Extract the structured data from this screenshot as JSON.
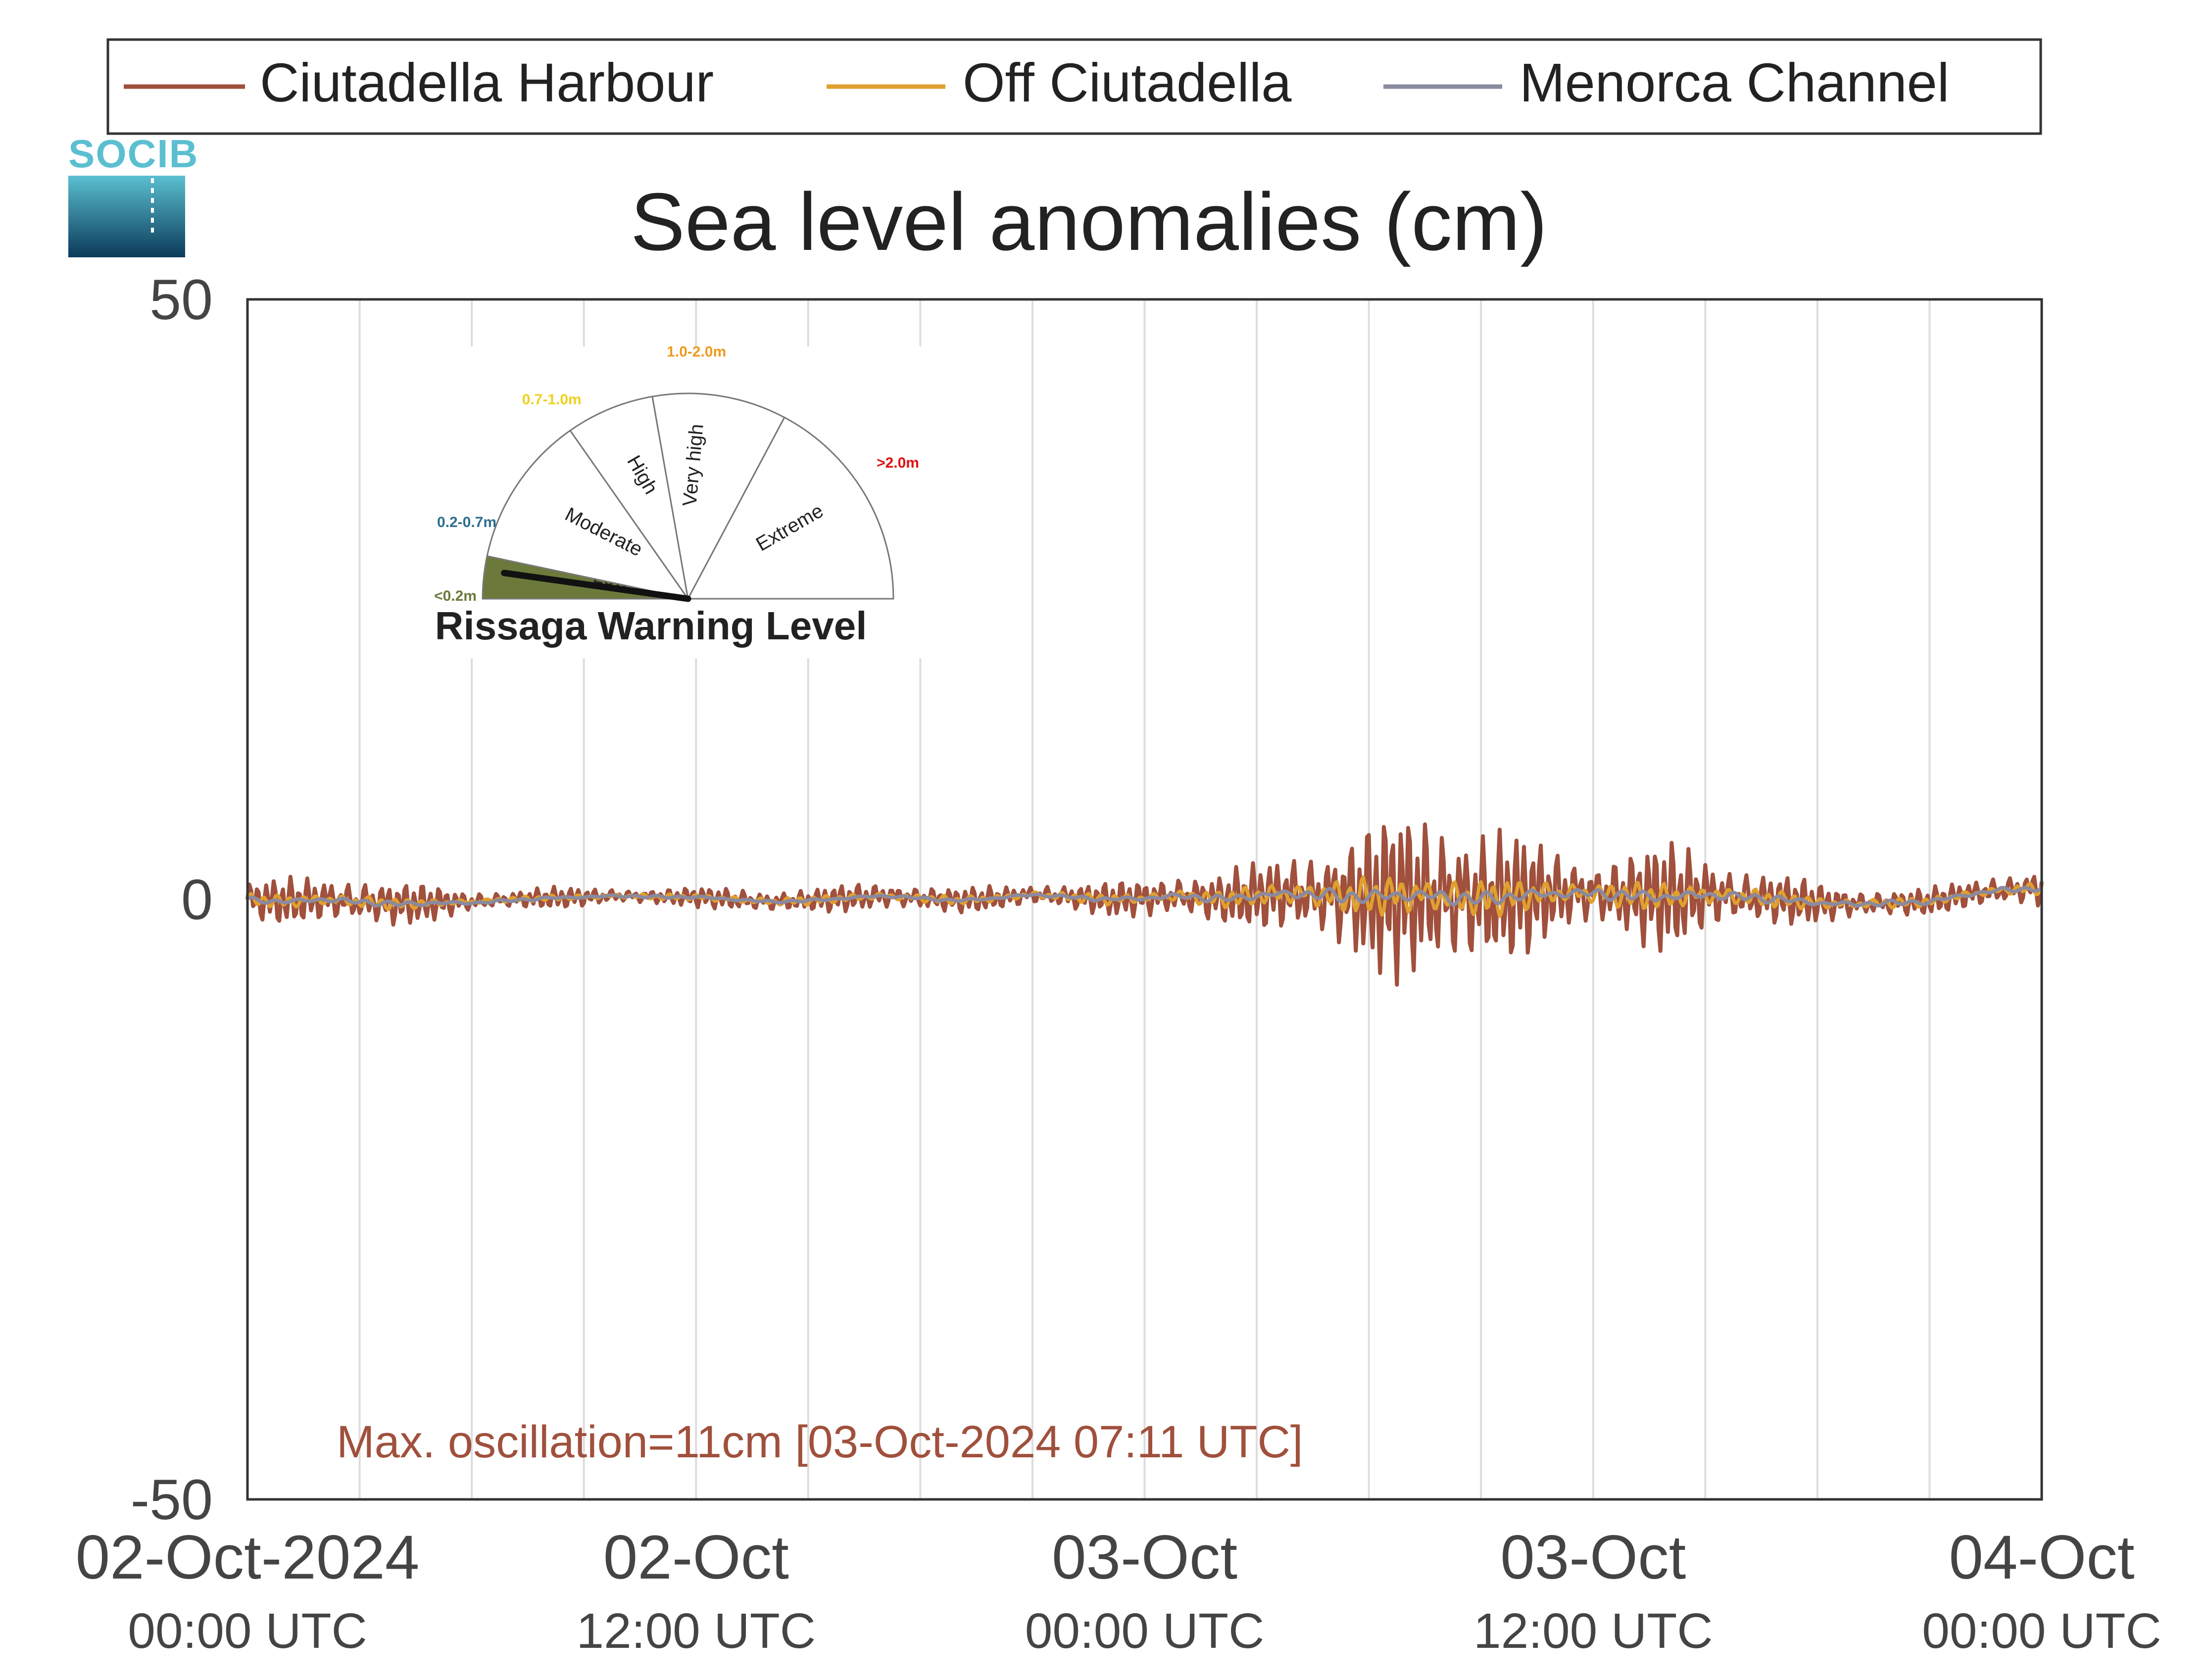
{
  "chart_data": {
    "type": "line",
    "title": "Sea level anomalies (cm)",
    "xlabel": "",
    "ylabel": "",
    "ylim": [
      -50,
      50
    ],
    "yticks": [
      -50,
      0,
      50
    ],
    "xlim_hours": [
      0,
      48
    ],
    "xticks": [
      {
        "hours": 0,
        "line1": "02-Oct-2024",
        "line2": "00:00 UTC"
      },
      {
        "hours": 12,
        "line1": "02-Oct",
        "line2": "12:00 UTC"
      },
      {
        "hours": 24,
        "line1": "03-Oct",
        "line2": "00:00 UTC"
      },
      {
        "hours": 36,
        "line1": "03-Oct",
        "line2": "12:00 UTC"
      },
      {
        "hours": 48,
        "line1": "04-Oct",
        "line2": "00:00 UTC"
      }
    ],
    "grid": "vertical lines every 3 hours",
    "legend_position": "top",
    "series": [
      {
        "name": "Ciutadella Harbour",
        "color": "#a0503c",
        "x_hours": [
          0,
          1,
          2,
          3,
          4,
          5,
          6,
          7,
          8,
          9,
          10,
          11,
          12,
          13,
          14,
          15,
          16,
          17,
          18,
          19,
          20,
          21,
          22,
          23,
          24,
          25,
          26,
          27,
          28,
          29,
          30,
          31,
          32,
          33,
          34,
          35,
          36,
          37,
          38,
          39,
          40,
          41,
          42,
          43,
          44,
          45,
          46,
          47,
          48
        ],
        "oscillation_amplitude_cm": [
          1.4,
          1.7,
          1.8,
          1.9,
          1.6,
          1.3,
          0.8,
          0.7,
          0.8,
          0.7,
          0.6,
          0.6,
          0.7,
          0.9,
          0.9,
          0.8,
          1.0,
          1.1,
          1.0,
          0.9,
          0.9,
          0.9,
          1.0,
          1.2,
          1.5,
          1.8,
          2.0,
          2.4,
          3.2,
          4.3,
          5.5,
          6.5,
          6.6,
          6.0,
          4.6,
          3.3,
          2.8,
          3.6,
          4.1,
          3.3,
          2.3,
          1.9,
          1.5,
          1.2,
          1.1,
          1.0,
          1.0,
          1.3,
          1.6
        ],
        "mean_cm": [
          0.0,
          -0.2,
          0.0,
          -0.2,
          -0.4,
          -0.3,
          -0.2,
          0.0,
          0.1,
          0.2,
          0.3,
          0.2,
          0.2,
          0.0,
          -0.2,
          -0.1,
          0.1,
          0.3,
          0.1,
          -0.1,
          0.1,
          0.4,
          0.2,
          0.0,
          0.1,
          0.3,
          0.0,
          0.3,
          0.5,
          0.3,
          0.2,
          0.4,
          0.2,
          0.0,
          0.3,
          0.5,
          0.5,
          0.3,
          0.2,
          0.4,
          0.2,
          0.0,
          -0.3,
          -0.4,
          -0.3,
          -0.2,
          0.4,
          0.8,
          0.9
        ]
      },
      {
        "name": "Off Ciutadella",
        "color": "#e0a030",
        "x_hours": [
          0,
          1,
          2,
          3,
          4,
          5,
          6,
          7,
          8,
          9,
          10,
          11,
          12,
          13,
          14,
          15,
          16,
          17,
          18,
          19,
          20,
          21,
          22,
          23,
          24,
          25,
          26,
          27,
          28,
          29,
          30,
          31,
          32,
          33,
          34,
          35,
          36,
          37,
          38,
          39,
          40,
          41,
          42,
          43,
          44,
          45,
          46,
          47,
          48
        ],
        "oscillation_amplitude_cm": [
          0.4,
          0.5,
          0.5,
          0.5,
          0.4,
          0.3,
          0.2,
          0.2,
          0.2,
          0.2,
          0.2,
          0.2,
          0.2,
          0.3,
          0.3,
          0.3,
          0.3,
          0.3,
          0.3,
          0.3,
          0.3,
          0.3,
          0.3,
          0.4,
          0.4,
          0.5,
          0.6,
          0.8,
          1.0,
          1.2,
          1.4,
          1.6,
          1.6,
          1.4,
          1.2,
          1.0,
          0.9,
          1.0,
          1.0,
          0.9,
          0.7,
          0.6,
          0.5,
          0.4,
          0.4,
          0.3,
          0.3,
          0.4,
          0.5
        ],
        "mean_cm": [
          0.0,
          -0.2,
          0.0,
          -0.2,
          -0.4,
          -0.3,
          -0.2,
          0.0,
          0.1,
          0.2,
          0.3,
          0.2,
          0.2,
          0.0,
          -0.2,
          -0.1,
          0.1,
          0.3,
          0.1,
          -0.1,
          0.1,
          0.4,
          0.2,
          0.0,
          0.1,
          0.3,
          0.0,
          0.3,
          0.5,
          0.3,
          0.2,
          0.4,
          0.2,
          0.0,
          0.3,
          0.5,
          0.5,
          0.3,
          0.2,
          0.4,
          0.2,
          0.0,
          -0.3,
          -0.4,
          -0.3,
          -0.2,
          0.4,
          0.8,
          0.9
        ]
      },
      {
        "name": "Menorca Channel",
        "color": "#8a8aa0",
        "x_hours": [
          0,
          1,
          2,
          3,
          4,
          5,
          6,
          7,
          8,
          9,
          10,
          11,
          12,
          13,
          14,
          15,
          16,
          17,
          18,
          19,
          20,
          21,
          22,
          23,
          24,
          25,
          26,
          27,
          28,
          29,
          30,
          31,
          32,
          33,
          34,
          35,
          36,
          37,
          38,
          39,
          40,
          41,
          42,
          43,
          44,
          45,
          46,
          47,
          48
        ],
        "oscillation_amplitude_cm": [
          0.2,
          0.2,
          0.2,
          0.2,
          0.2,
          0.2,
          0.1,
          0.1,
          0.1,
          0.1,
          0.1,
          0.1,
          0.1,
          0.1,
          0.1,
          0.1,
          0.1,
          0.1,
          0.1,
          0.1,
          0.1,
          0.1,
          0.1,
          0.2,
          0.2,
          0.2,
          0.3,
          0.3,
          0.4,
          0.5,
          0.5,
          0.6,
          0.6,
          0.5,
          0.5,
          0.4,
          0.4,
          0.4,
          0.4,
          0.4,
          0.3,
          0.3,
          0.2,
          0.2,
          0.2,
          0.2,
          0.2,
          0.2,
          0.2
        ],
        "mean_cm": [
          0.0,
          -0.2,
          0.0,
          -0.2,
          -0.4,
          -0.3,
          -0.3,
          -0.1,
          0.1,
          0.2,
          0.3,
          0.2,
          0.2,
          0.0,
          -0.2,
          -0.1,
          0.1,
          0.3,
          0.1,
          -0.1,
          0.1,
          0.4,
          0.2,
          0.0,
          0.1,
          0.3,
          0.0,
          0.3,
          0.5,
          0.3,
          0.2,
          0.4,
          0.2,
          0.0,
          0.3,
          0.5,
          0.5,
          0.3,
          0.2,
          0.4,
          0.2,
          0.0,
          -0.3,
          -0.4,
          -0.3,
          -0.2,
          0.4,
          0.8,
          0.9
        ]
      }
    ],
    "annotation": {
      "text": "Max. oscillation=11cm [03-Oct-2024 07:11 UTC]",
      "color": "#a0503c"
    }
  },
  "logo": {
    "text": "SOCIB"
  },
  "gauge": {
    "title": "Rissaga Warning Level",
    "current_level": "Low",
    "levels": [
      {
        "name": "Low",
        "range": "<0.2m",
        "color": "#6b7a3a",
        "range_color": "#6b7a3a"
      },
      {
        "name": "Moderate",
        "range": "0.2-0.7m",
        "color": "#ffffff",
        "range_color": "#2e6f8e"
      },
      {
        "name": "High",
        "range": "0.7-1.0m",
        "color": "#ffffff",
        "range_color": "#f0d020"
      },
      {
        "name": "Very high",
        "range": "1.0-2.0m",
        "color": "#ffffff",
        "range_color": "#f09a20"
      },
      {
        "name": "Extreme",
        "range": ">2.0m",
        "color": "#ffffff",
        "range_color": "#e01010"
      }
    ]
  }
}
